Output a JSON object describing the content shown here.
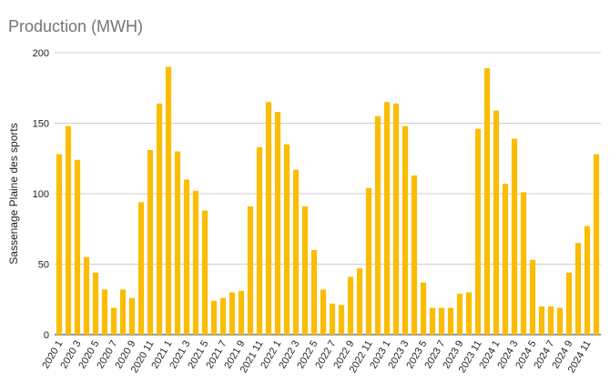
{
  "chart_data": {
    "type": "bar",
    "title": "Production (MWH)",
    "xlabel": "",
    "ylabel": "Sassenage Plaine des sports",
    "ylim": [
      0,
      200
    ],
    "yticks": [
      0,
      50,
      100,
      150,
      200
    ],
    "grid": true,
    "bar_color": "#fbbc04",
    "categories": [
      "2020 1",
      "2020 2",
      "2020 3",
      "2020 4",
      "2020 5",
      "2020 6",
      "2020 7",
      "2020 8",
      "2020 9",
      "2020 10",
      "2020 11",
      "2020 12",
      "2021 1",
      "2021 2",
      "2021 3",
      "2021 4",
      "2021 5",
      "2021 6",
      "2021 7",
      "2021 8",
      "2021 9",
      "2021 10",
      "2021 11",
      "2021 12",
      "2022 1",
      "2022 2",
      "2022 3",
      "2022 4",
      "2022 5",
      "2022 6",
      "2022 7",
      "2022 8",
      "2022 9",
      "2022 10",
      "2022 11",
      "2022 12",
      "2023 1",
      "2023 2",
      "2023 3",
      "2023 4",
      "2023 5",
      "2023 6",
      "2023 7",
      "2023 8",
      "2023 9",
      "2023 10",
      "2023 11",
      "2023 12",
      "2024 1",
      "2024 2",
      "2024 3",
      "2024 4",
      "2024 5",
      "2024 6",
      "2024 7",
      "2024 8",
      "2024 9",
      "2024 10",
      "2024 11",
      "2024 12"
    ],
    "values": [
      128,
      148,
      124,
      55,
      44,
      32,
      19,
      32,
      26,
      94,
      131,
      164,
      190,
      130,
      110,
      102,
      88,
      24,
      26,
      30,
      31,
      91,
      133,
      165,
      158,
      135,
      117,
      91,
      60,
      32,
      22,
      21,
      41,
      47,
      104,
      155,
      165,
      164,
      148,
      113,
      37,
      19,
      19,
      19,
      29,
      30,
      146,
      189,
      159,
      107,
      139,
      101,
      53,
      20,
      20,
      19,
      44,
      65,
      77,
      128
    ],
    "xtick_labels": [
      "2020 1",
      "2020 3",
      "2020 5",
      "2020 7",
      "2020 9",
      "2020 11",
      "2021 1",
      "2021 3",
      "2021 5",
      "2021 7",
      "2021 9",
      "2021 11",
      "2022 1",
      "2022 3",
      "2022 5",
      "2022 7",
      "2022 9",
      "2022 11",
      "2023 1",
      "2023 3",
      "2023 5",
      "2023 7",
      "2023 9",
      "2023 11",
      "2024 1",
      "2024 3",
      "2024 5",
      "2024 7",
      "2024 9",
      "2024 11"
    ]
  }
}
